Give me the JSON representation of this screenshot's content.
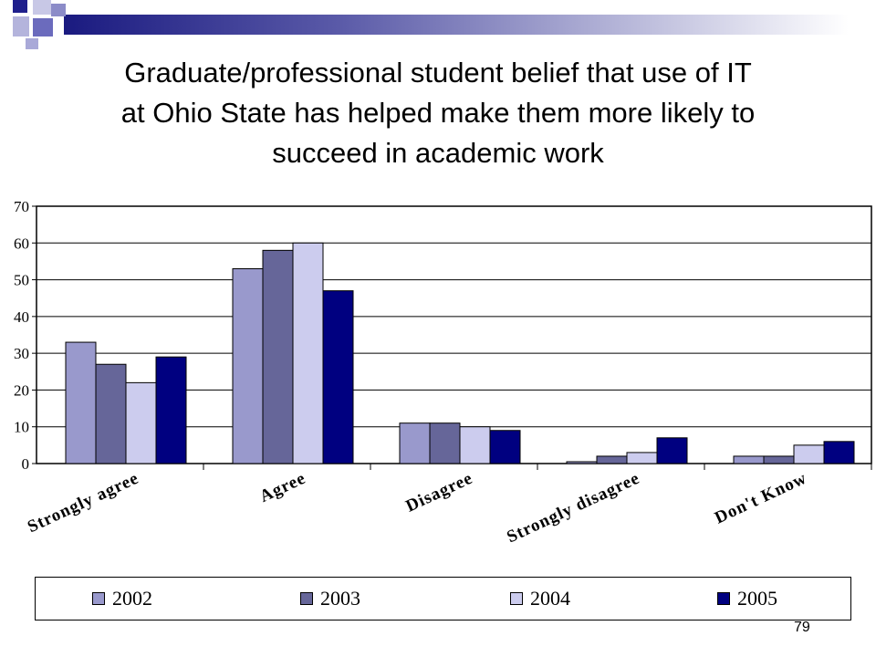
{
  "slide": {
    "title_lines": [
      "Graduate/professional student belief that use of IT",
      "at Ohio State has helped make them more likely to",
      "succeed in academic work"
    ],
    "page_number": "79",
    "accent_colors": [
      "#1f1f8c",
      "#6b6bbd",
      "#a9a9d8"
    ]
  },
  "chart_data": {
    "type": "bar",
    "categories": [
      "Strongly agree",
      "Agree",
      "Disagree",
      "Strongly disagree",
      "Don't Know"
    ],
    "series": [
      {
        "name": "2002",
        "color": "#9999cc",
        "values": [
          33,
          53,
          11,
          0.5,
          2
        ]
      },
      {
        "name": "2003",
        "color": "#666699",
        "values": [
          27,
          58,
          11,
          2,
          2
        ]
      },
      {
        "name": "2004",
        "color": "#ccccee",
        "values": [
          22,
          60,
          10,
          3,
          5
        ]
      },
      {
        "name": "2005",
        "color": "#000080",
        "values": [
          29,
          47,
          9,
          7,
          6
        ]
      }
    ],
    "ylim": [
      0,
      70
    ],
    "yticks": [
      0,
      10,
      20,
      30,
      40,
      50,
      60,
      70
    ],
    "grid": true,
    "legend": "bottom",
    "title": "",
    "xlabel": "",
    "ylabel": ""
  }
}
